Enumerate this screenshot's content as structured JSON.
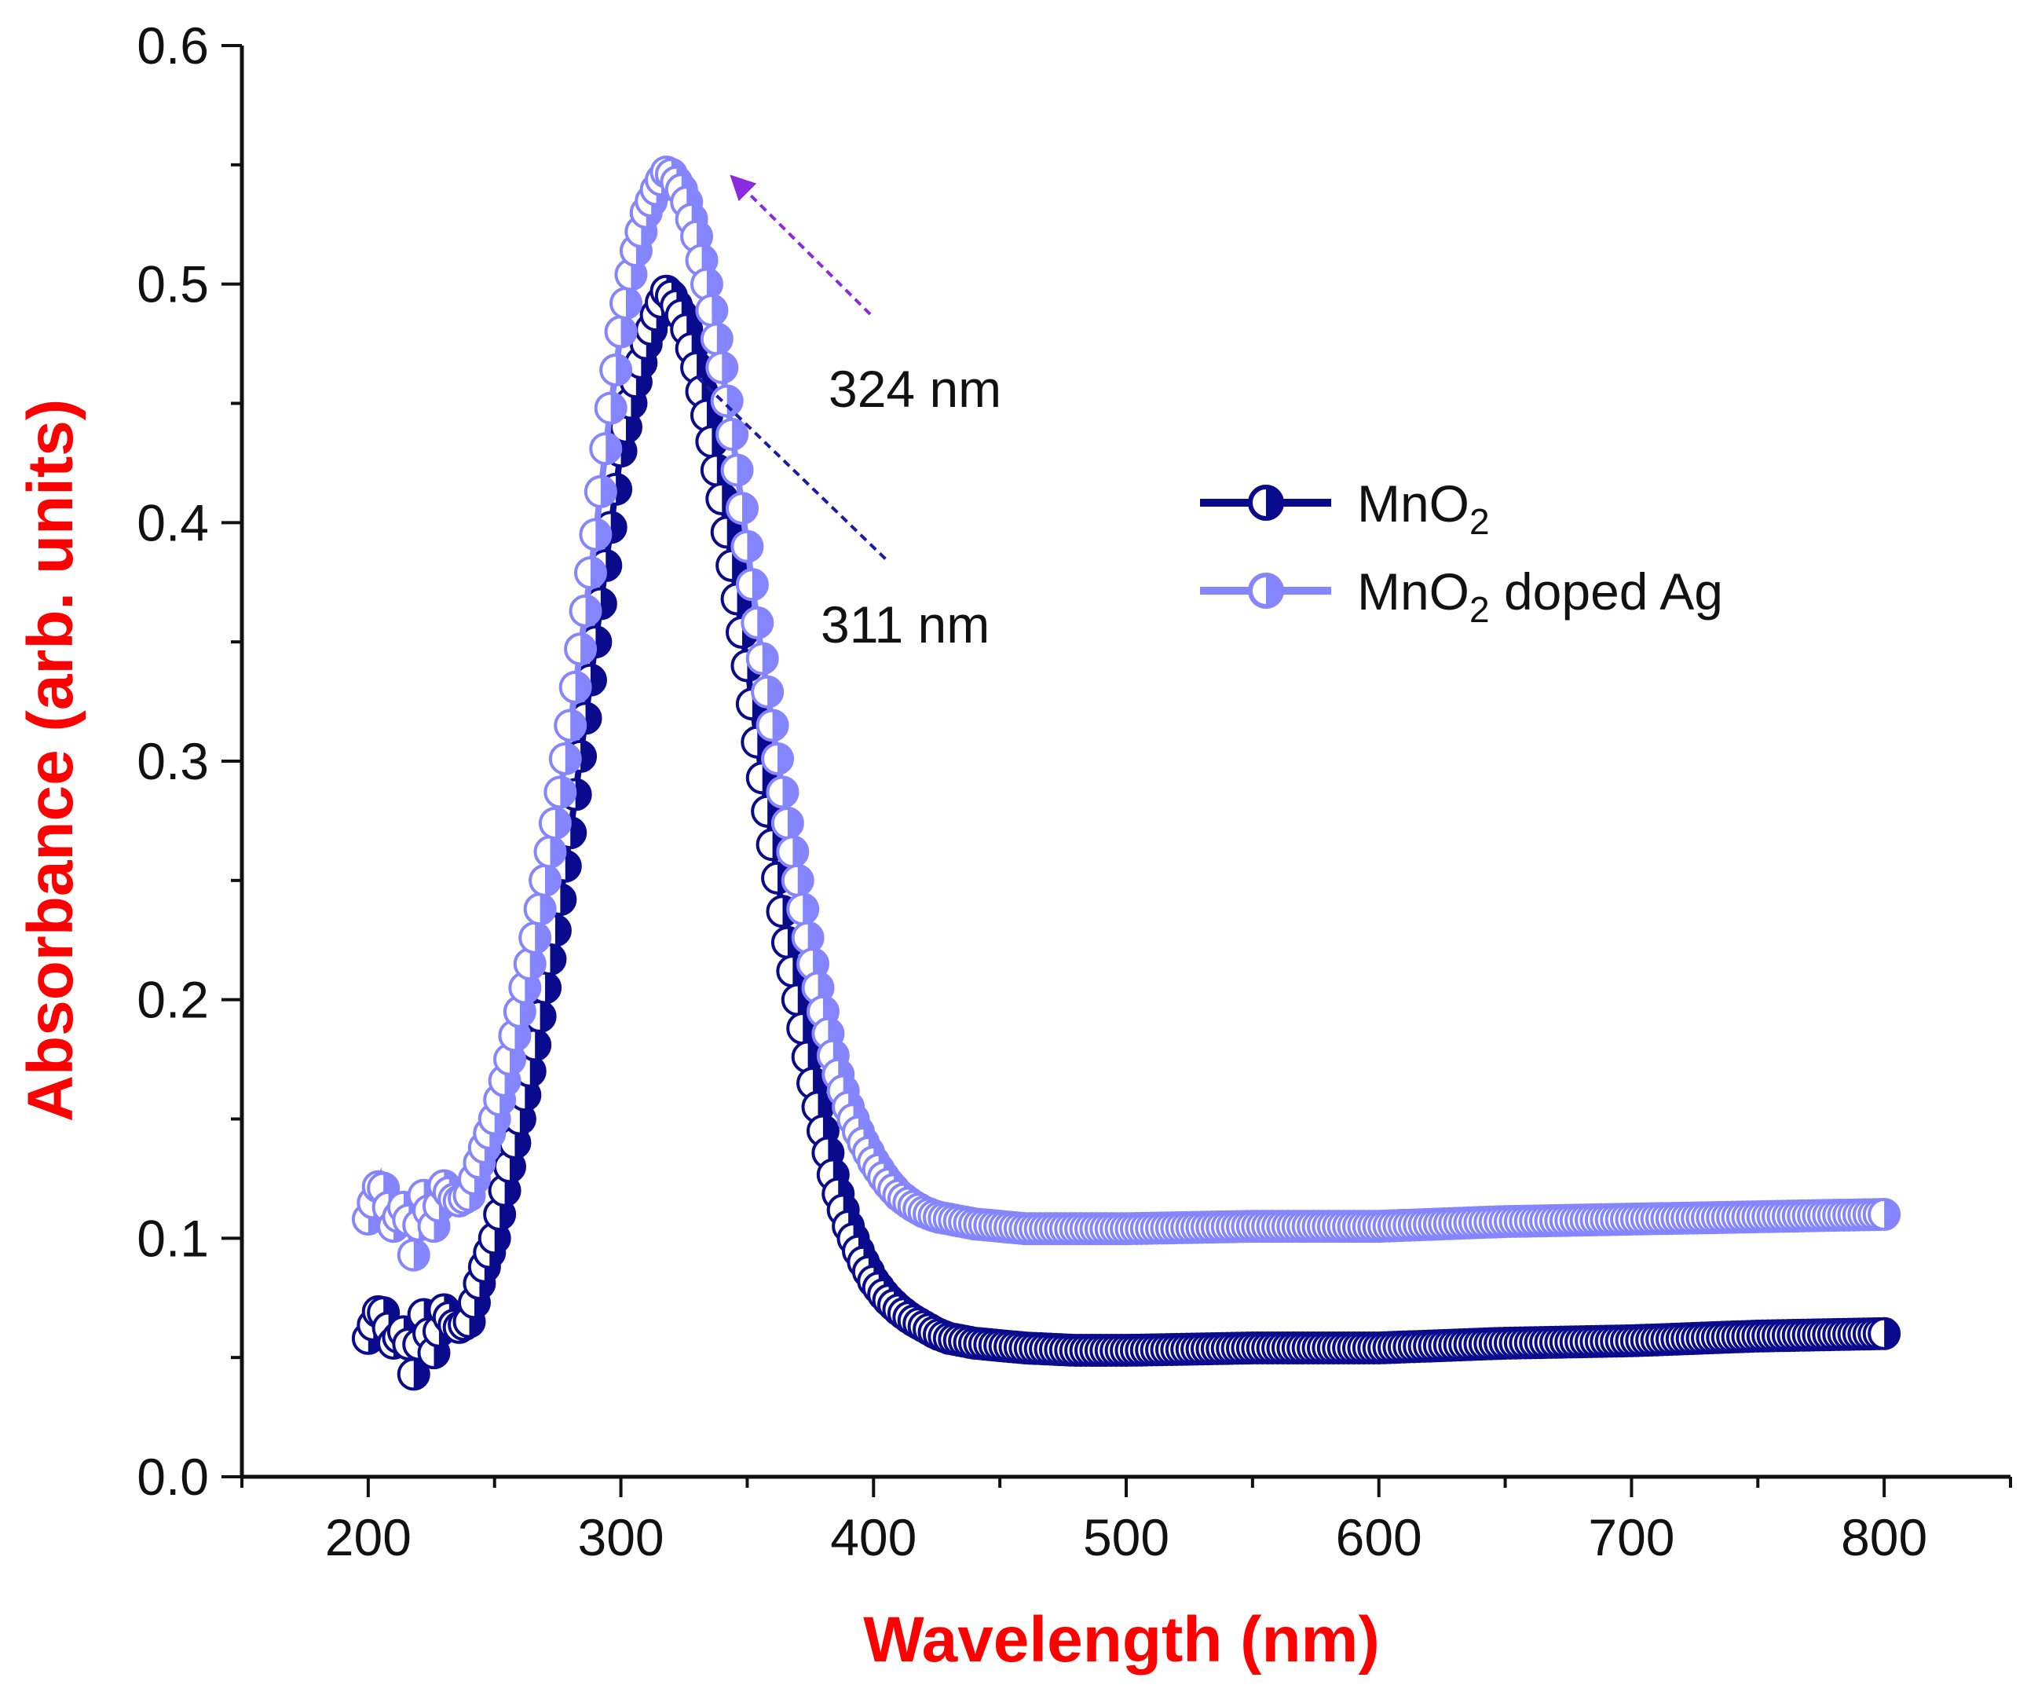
{
  "chart_data": {
    "type": "scatter",
    "title": "",
    "xlabel": "Wavelength (nm)",
    "ylabel": "Absorbance (arb. units)",
    "axis_title_color": "#ff0000",
    "xlim": [
      150,
      850
    ],
    "ylim": [
      0.0,
      0.6
    ],
    "xticks": [
      "200",
      "300",
      "400",
      "500",
      "600",
      "700",
      "800"
    ],
    "yticks": [
      "0.0",
      "0.1",
      "0.2",
      "0.3",
      "0.4",
      "0.5",
      "0.6"
    ],
    "grid": false,
    "legend_position": "upper-right",
    "series": [
      {
        "name": "MnO2",
        "legend_base": "MnO",
        "legend_sub": "2",
        "legend_suffix": "",
        "color": "#0a0a8c",
        "x": [
          200,
          205,
          210,
          215,
          218,
          222,
          226,
          230,
          235,
          240,
          245,
          250,
          255,
          260,
          265,
          270,
          275,
          280,
          285,
          290,
          295,
          300,
          305,
          310,
          315,
          318,
          320,
          325,
          330,
          335,
          340,
          345,
          350,
          355,
          360,
          365,
          370,
          375,
          380,
          385,
          390,
          395,
          400,
          405,
          410,
          415,
          420,
          425,
          430,
          440,
          450,
          460,
          480,
          500,
          550,
          600,
          650,
          700,
          750,
          800
        ],
        "y": [
          0.058,
          0.072,
          0.056,
          0.062,
          0.043,
          0.068,
          0.052,
          0.07,
          0.062,
          0.065,
          0.085,
          0.1,
          0.125,
          0.15,
          0.175,
          0.205,
          0.235,
          0.27,
          0.31,
          0.35,
          0.39,
          0.43,
          0.455,
          0.475,
          0.49,
          0.497,
          0.495,
          0.485,
          0.465,
          0.44,
          0.41,
          0.375,
          0.34,
          0.3,
          0.265,
          0.23,
          0.2,
          0.17,
          0.145,
          0.122,
          0.105,
          0.092,
          0.082,
          0.075,
          0.07,
          0.066,
          0.063,
          0.06,
          0.058,
          0.056,
          0.055,
          0.054,
          0.053,
          0.053,
          0.054,
          0.054,
          0.056,
          0.057,
          0.059,
          0.06
        ]
      },
      {
        "name": "MnO2 doped Ag",
        "legend_base": "MnO",
        "legend_sub": "2",
        "legend_suffix": " doped Ag",
        "color": "#8585ff",
        "x": [
          200,
          205,
          210,
          215,
          218,
          222,
          226,
          230,
          235,
          240,
          245,
          250,
          255,
          260,
          265,
          270,
          275,
          280,
          285,
          290,
          295,
          300,
          305,
          310,
          315,
          318,
          320,
          325,
          330,
          335,
          340,
          345,
          350,
          355,
          360,
          365,
          370,
          375,
          380,
          385,
          390,
          395,
          400,
          405,
          410,
          415,
          420,
          425,
          430,
          440,
          450,
          460,
          480,
          500,
          550,
          600,
          650,
          700,
          750,
          800
        ],
        "y": [
          0.108,
          0.125,
          0.105,
          0.115,
          0.093,
          0.118,
          0.105,
          0.122,
          0.115,
          0.118,
          0.135,
          0.15,
          0.17,
          0.195,
          0.22,
          0.25,
          0.28,
          0.315,
          0.355,
          0.395,
          0.44,
          0.48,
          0.51,
          0.53,
          0.542,
          0.547,
          0.546,
          0.538,
          0.52,
          0.495,
          0.465,
          0.43,
          0.39,
          0.35,
          0.315,
          0.28,
          0.25,
          0.22,
          0.195,
          0.172,
          0.155,
          0.142,
          0.132,
          0.124,
          0.118,
          0.114,
          0.111,
          0.109,
          0.108,
          0.106,
          0.105,
          0.104,
          0.104,
          0.104,
          0.105,
          0.105,
          0.107,
          0.108,
          0.109,
          0.11
        ]
      }
    ],
    "annotations": [
      {
        "text": "324 nm",
        "arrow_color": "#8a2be2"
      },
      {
        "text": "311 nm",
        "arrow_color": "#1a1aa8"
      }
    ]
  }
}
